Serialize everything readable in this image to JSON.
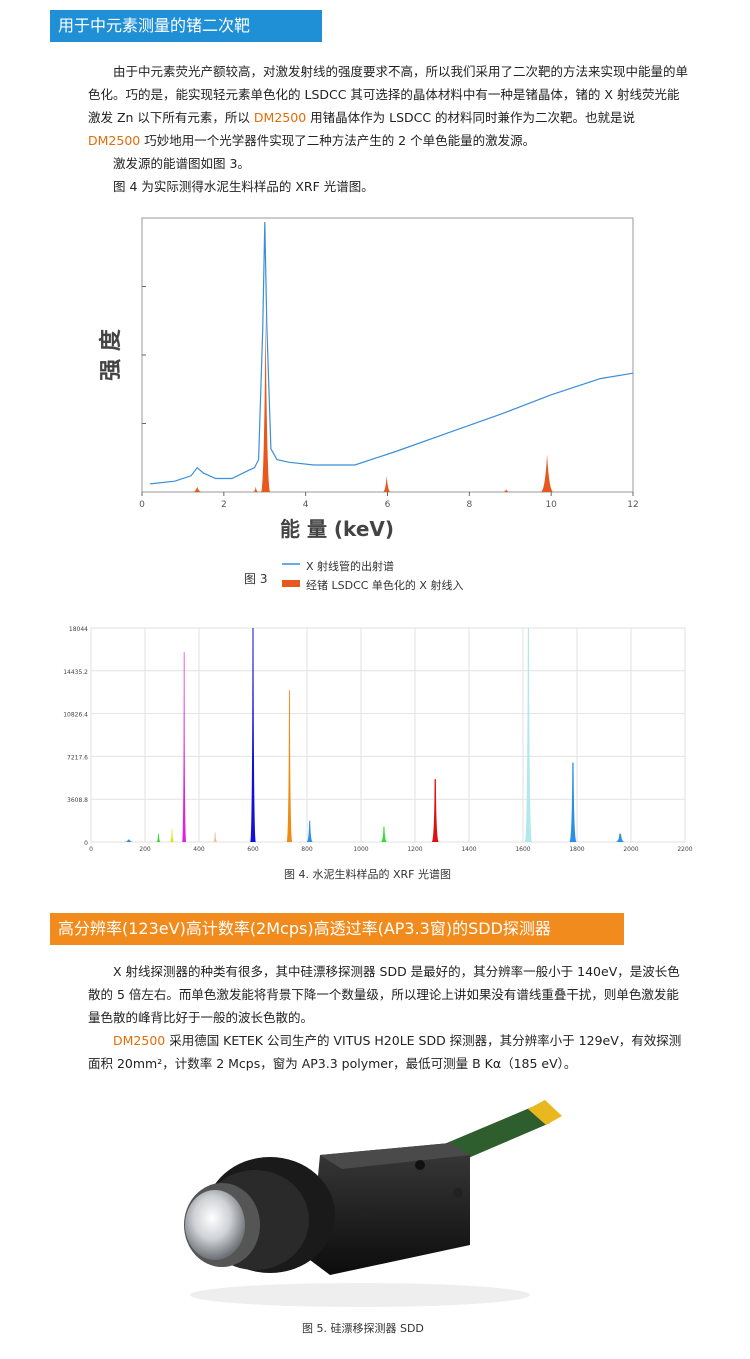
{
  "section1": {
    "title": "用于中元素测量的锗二次靶",
    "p1_a": "由于中元素荧光产额较高，对激发射线的强度要求不高，所以我们采用了二次靶的方法来实现中能量的单色化。巧的是，能实现轻元素单色化的 LSDCC 其可选择的晶体材料中有一种是锗晶体，锗的 X 射线荧光能激发 Zn 以下所有元素，所以 ",
    "p1_brand": "DM2500",
    "p1_b": " 用锗晶体作为 LSDCC 的材料同时兼作为二次靶。也就是说 ",
    "p1_brand2": "DM2500",
    "p1_c": " 巧妙地用一个光学器件实现了二种方法产生的 2 个单色能量的激发源。",
    "p2": "激发源的能谱图如图 3。",
    "p3": "图 4 为实际测得水泥生料样品的 XRF 光谱图。"
  },
  "figure3": {
    "ylabel": "强 度",
    "xlabel": "能 量 (keV)",
    "caption": "图 3",
    "legend_line": "X 射线管的出射谱",
    "legend_fill": "经锗 LSDCC 单色化的 X 射线入",
    "line_color": "#3a8fd8",
    "fill_color": "#e8571c"
  },
  "figure4": {
    "caption": "图 4. 水泥生料样品的 XRF 光谱图"
  },
  "section2": {
    "title": "高分辨率(123eV)高计数率(2Mcps)高透过率(AP3.3窗)的SDD探测器",
    "p1": "X 射线探测器的种类有很多，其中硅漂移探测器 SDD 是最好的，其分辨率一般小于 140eV，是波长色散的 5 倍左右。而单色激发能将背景下降一个数量级，所以理论上讲如果没有谱线重叠干扰，则单色激发能量色散的峰背比好于一般的波长色散的。",
    "p2_brand": "DM2500",
    "p2_a": " 采用德国 KETEK 公司生产的 VITUS H20LE SDD 探测器，其分辨率小于 129eV，有效探测面积 20mm²，计数率 2 Mcps，窗为 AP3.3 polymer，最低可测量 B Kα（185 eV）。",
    "figure5_caption": "图 5. 硅漂移探测器 SDD"
  },
  "chart_data": [
    {
      "type": "area",
      "x_ticks": [
        "0",
        "2",
        "4",
        "6",
        "8",
        "10",
        "12"
      ],
      "xlim": [
        0,
        12
      ],
      "series": [
        {
          "name": "X 射线管的出射谱",
          "type": "line",
          "x": [
            0.2,
            0.8,
            1.2,
            1.35,
            1.5,
            1.8,
            2.2,
            2.6,
            2.75,
            2.85,
            2.95,
            3.0,
            3.05,
            3.15,
            3.3,
            3.6,
            4.2,
            5.2,
            6.2,
            7.5,
            8.8,
            10.0,
            11.2,
            12.0
          ],
          "y": [
            0.03,
            0.04,
            0.06,
            0.09,
            0.07,
            0.05,
            0.05,
            0.08,
            0.09,
            0.12,
            0.6,
            1.0,
            0.62,
            0.16,
            0.12,
            0.11,
            0.1,
            0.1,
            0.15,
            0.22,
            0.29,
            0.36,
            0.42,
            0.44
          ]
        },
        {
          "name": "经锗 LSDCC 单色化的 X 射线入",
          "type": "peaks",
          "peaks": [
            {
              "x": 1.35,
              "y": 0.02,
              "w": 0.07
            },
            {
              "x": 2.78,
              "y": 0.02,
              "w": 0.04
            },
            {
              "x": 3.02,
              "y": 0.66,
              "w": 0.07
            },
            {
              "x": 5.98,
              "y": 0.06,
              "w": 0.06
            },
            {
              "x": 8.9,
              "y": 0.01,
              "w": 0.05
            },
            {
              "x": 9.9,
              "y": 0.14,
              "w": 0.1
            }
          ]
        }
      ]
    },
    {
      "type": "area",
      "y_ticks": [
        "0",
        "3608.8",
        "7217.6",
        "10826.4",
        "14435.2",
        "18044"
      ],
      "x_ticks": [
        "0",
        "200",
        "400",
        "600",
        "800",
        "1000",
        "1200",
        "1400",
        "1600",
        "1800",
        "2000",
        "2200"
      ],
      "xlim": [
        0,
        2200
      ],
      "ylim": [
        0,
        18044
      ],
      "peaks": [
        {
          "x": 140,
          "y": 200,
          "w": 12,
          "color": "#2b8fe8"
        },
        {
          "x": 250,
          "y": 700,
          "w": 6,
          "color": "#3cd23c"
        },
        {
          "x": 300,
          "y": 1100,
          "w": 5,
          "color": "#e0e000"
        },
        {
          "x": 345,
          "y": 16000,
          "w": 5,
          "color": "#e020e0"
        },
        {
          "x": 460,
          "y": 800,
          "w": 6,
          "color": "#f0c0a0"
        },
        {
          "x": 600,
          "y": 18044,
          "w": 7,
          "color": "#1010d8"
        },
        {
          "x": 735,
          "y": 12800,
          "w": 7,
          "color": "#f08a10"
        },
        {
          "x": 810,
          "y": 1800,
          "w": 8,
          "color": "#2b8fe8"
        },
        {
          "x": 1085,
          "y": 1300,
          "w": 8,
          "color": "#30e030"
        },
        {
          "x": 1275,
          "y": 5300,
          "w": 9,
          "color": "#e01010"
        },
        {
          "x": 1620,
          "y": 18044,
          "w": 9,
          "color": "#b0e8ec"
        },
        {
          "x": 1785,
          "y": 6700,
          "w": 9,
          "color": "#2b8fe8"
        },
        {
          "x": 1960,
          "y": 700,
          "w": 12,
          "color": "#2b8fe8"
        }
      ]
    }
  ]
}
